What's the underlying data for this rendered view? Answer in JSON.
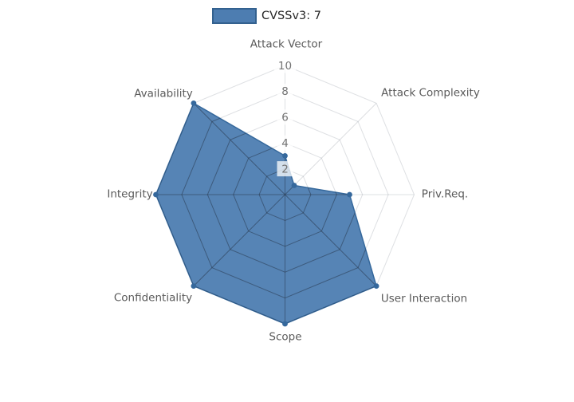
{
  "chart_data": {
    "type": "radar",
    "title": "",
    "legend": {
      "label": "CVSSv3: 7"
    },
    "categories": [
      "Attack Vector",
      "Attack Complexity",
      "Priv.Req.",
      "User Interaction",
      "Scope",
      "Confidentiality",
      "Integrity",
      "Availability"
    ],
    "values": [
      3,
      1,
      5,
      10,
      10,
      10,
      10,
      10
    ],
    "radial_ticks": [
      2,
      4,
      6,
      8,
      10
    ],
    "rlim": [
      0,
      10
    ],
    "layout": {
      "start": "top",
      "direction": "clockwise",
      "grid": "spider-web",
      "legend_position": "top-center"
    },
    "colors": {
      "fill": "#4d7db1",
      "line": "#35689c",
      "marker": "#35689c",
      "grid_inner": "rgba(42,58,80,0.55)",
      "grid_outer": "rgba(125,133,144,0.25)",
      "tick_text": "#737373",
      "tick_bg": "rgba(255,255,255,0.75)",
      "label_text": "#5a5a5a",
      "legend_text": "#262626",
      "legend_swatch_fill": "#4d7db1",
      "legend_swatch_border": "#33618f"
    }
  }
}
